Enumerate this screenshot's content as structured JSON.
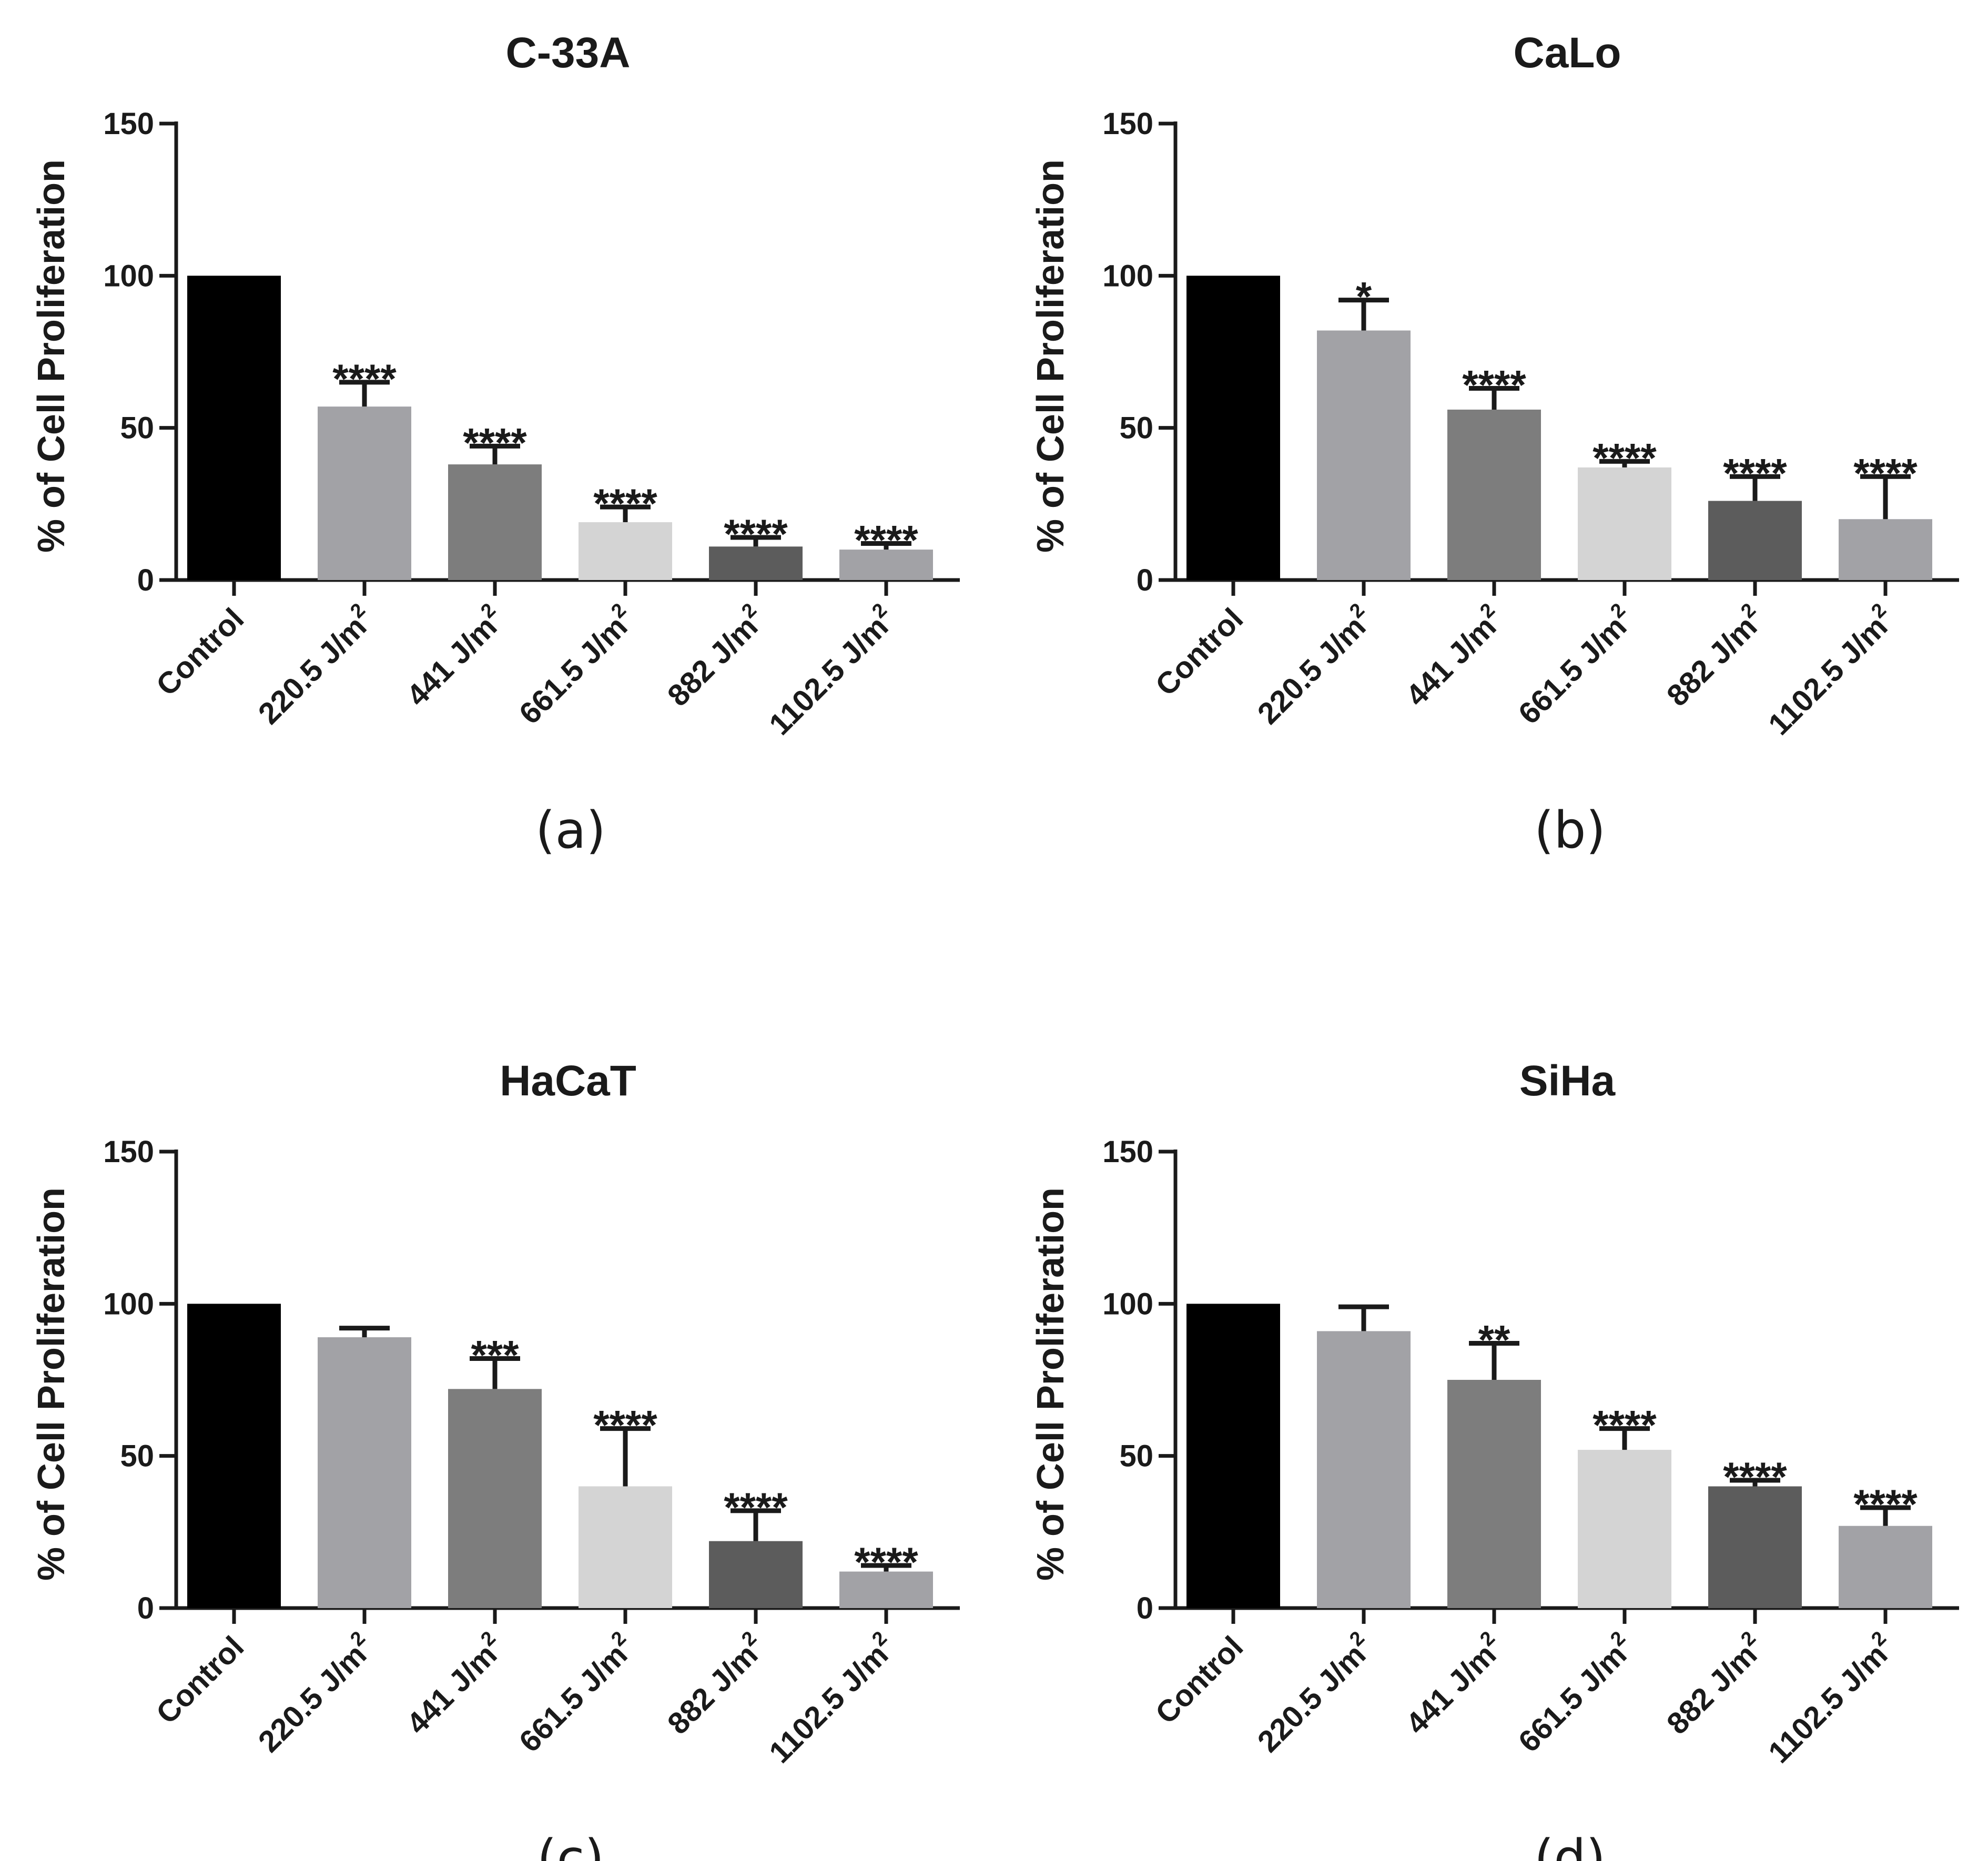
{
  "chart_data": [
    {
      "type": "bar",
      "panel": "(a)",
      "title": "C-33A",
      "ylabel": "% of Cell Proliferation",
      "ylim": [
        0,
        150
      ],
      "yticks": [
        0,
        50,
        100,
        150
      ],
      "categories": [
        {
          "base": "Control",
          "sup": ""
        },
        {
          "base": "220.5 J/m",
          "sup": "2"
        },
        {
          "base": "441 J/m",
          "sup": "2"
        },
        {
          "base": "661.5 J/m",
          "sup": "2"
        },
        {
          "base": "882 J/m",
          "sup": "2"
        },
        {
          "base": "1102.5 J/m",
          "sup": "2"
        }
      ],
      "values": [
        100,
        57,
        38,
        19,
        11,
        10
      ],
      "errors": [
        0,
        8,
        6,
        5,
        3,
        2
      ],
      "significance": [
        "",
        "****",
        "****",
        "****",
        "****",
        "****"
      ],
      "colors": [
        "#000000",
        "#a2a2a6",
        "#7d7d7d",
        "#d4d4d4",
        "#5c5c5c",
        "#a2a2a6"
      ]
    },
    {
      "type": "bar",
      "panel": "(b)",
      "title": "CaLo",
      "ylabel": "% of Cell Proliferation",
      "ylim": [
        0,
        150
      ],
      "yticks": [
        0,
        50,
        100,
        150
      ],
      "categories": [
        {
          "base": "Control",
          "sup": ""
        },
        {
          "base": "220.5 J/m",
          "sup": "2"
        },
        {
          "base": "441 J/m",
          "sup": "2"
        },
        {
          "base": "661.5 J/m",
          "sup": "2"
        },
        {
          "base": "882 J/m",
          "sup": "2"
        },
        {
          "base": "1102.5 J/m",
          "sup": "2"
        }
      ],
      "values": [
        100,
        82,
        56,
        37,
        26,
        20
      ],
      "errors": [
        0,
        10,
        7,
        2,
        8,
        14
      ],
      "significance": [
        "",
        "*",
        "****",
        "****",
        "****",
        "****"
      ],
      "colors": [
        "#000000",
        "#a2a2a6",
        "#7d7d7d",
        "#d4d4d4",
        "#5c5c5c",
        "#a2a2a6"
      ]
    },
    {
      "type": "bar",
      "panel": "(c)",
      "title": "HaCaT",
      "ylabel": "% of Cell Proliferation",
      "ylim": [
        0,
        150
      ],
      "yticks": [
        0,
        50,
        100,
        150
      ],
      "categories": [
        {
          "base": "Control",
          "sup": ""
        },
        {
          "base": "220.5 J/m",
          "sup": "2"
        },
        {
          "base": "441 J/m",
          "sup": "2"
        },
        {
          "base": "661.5 J/m",
          "sup": "2"
        },
        {
          "base": "882 J/m",
          "sup": "2"
        },
        {
          "base": "1102.5 J/m",
          "sup": "2"
        }
      ],
      "values": [
        100,
        89,
        72,
        40,
        22,
        12
      ],
      "errors": [
        0,
        3,
        10,
        19,
        10,
        2
      ],
      "significance": [
        "",
        "",
        "***",
        "****",
        "****",
        "****"
      ],
      "colors": [
        "#000000",
        "#a2a2a6",
        "#7d7d7d",
        "#d4d4d4",
        "#5c5c5c",
        "#a2a2a6"
      ]
    },
    {
      "type": "bar",
      "panel": "(d)",
      "title": "SiHa",
      "ylabel": "% of Cell Proliferation",
      "ylim": [
        0,
        150
      ],
      "yticks": [
        0,
        50,
        100,
        150
      ],
      "categories": [
        {
          "base": "Control",
          "sup": ""
        },
        {
          "base": "220.5 J/m",
          "sup": "2"
        },
        {
          "base": "441 J/m",
          "sup": "2"
        },
        {
          "base": "661.5 J/m",
          "sup": "2"
        },
        {
          "base": "882 J/m",
          "sup": "2"
        },
        {
          "base": "1102.5 J/m",
          "sup": "2"
        }
      ],
      "values": [
        100,
        91,
        75,
        52,
        40,
        27
      ],
      "errors": [
        0,
        8,
        12,
        7,
        2,
        6
      ],
      "significance": [
        "",
        "",
        "**",
        "****",
        "****",
        "****"
      ],
      "colors": [
        "#000000",
        "#a2a2a6",
        "#7d7d7d",
        "#d4d4d4",
        "#5c5c5c",
        "#a2a2a6"
      ]
    }
  ]
}
